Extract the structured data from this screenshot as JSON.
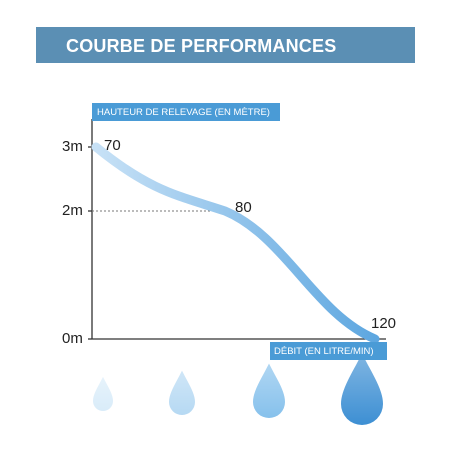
{
  "header": {
    "title": "COURBE DE PERFORMANCES"
  },
  "colors": {
    "banner": "#5b8fb4",
    "label_box": "#4a9bd6",
    "curve_start": "#c7e1f6",
    "curve_end": "#5ea7e0"
  },
  "chart_data": {
    "type": "line",
    "xlabel": "DÉBIT (EN LITRE/MIN)",
    "ylabel": "HAUTEUR DE RELEVAGE (EN MÈTRE)",
    "y_ticks": [
      "3m",
      "2m",
      "0m"
    ],
    "y_tick_values": [
      3,
      2,
      0
    ],
    "ylim": [
      0,
      3
    ],
    "grid": false,
    "series": [
      {
        "points": [
          {
            "x": 70,
            "y": 3,
            "label": "70"
          },
          {
            "x": 80,
            "y": 2,
            "label": "80"
          },
          {
            "x": 120,
            "y": 0,
            "label": "120"
          }
        ]
      }
    ],
    "dashed_reference": {
      "y": 2
    }
  },
  "legend": {
    "drops": [
      "small-drop-icon",
      "medium-drop-icon",
      "large-drop-icon",
      "xlarge-drop-icon"
    ]
  }
}
